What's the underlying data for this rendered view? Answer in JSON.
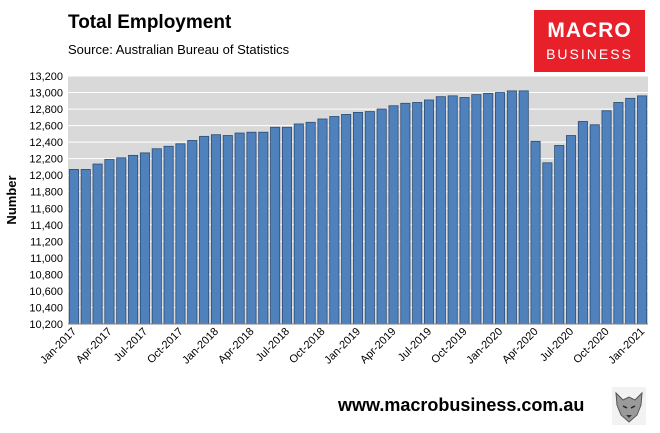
{
  "header": {
    "title": "Total Employment",
    "subtitle": "Source: Australian Bureau of Statistics"
  },
  "logo": {
    "line1": "MACRO",
    "line2": "BUSINESS"
  },
  "footer": {
    "url": "www.macrobusiness.com.au"
  },
  "colors": {
    "bar_fill": "#4f81bd",
    "bar_edge": "#2c4d75",
    "plot_bg": "#d9d9d9",
    "logo_red": "#e8202a"
  },
  "chart_data": {
    "type": "bar",
    "ylabel": "Number",
    "ylim": [
      10200,
      13200
    ],
    "yticks": [
      10200,
      10400,
      10600,
      10800,
      11000,
      11200,
      11400,
      11600,
      11800,
      12000,
      12200,
      12400,
      12600,
      12800,
      13000,
      13200
    ],
    "ytick_labels": [
      "10,200",
      "10,400",
      "10,600",
      "10,800",
      "11,000",
      "11,200",
      "11,400",
      "11,600",
      "11,800",
      "12,000",
      "12,200",
      "12,400",
      "12,600",
      "12,800",
      "13,000",
      "13,200"
    ],
    "categories": [
      "Jan-2017",
      "Feb-2017",
      "Mar-2017",
      "Apr-2017",
      "May-2017",
      "Jun-2017",
      "Jul-2017",
      "Aug-2017",
      "Sep-2017",
      "Oct-2017",
      "Nov-2017",
      "Dec-2017",
      "Jan-2018",
      "Feb-2018",
      "Mar-2018",
      "Apr-2018",
      "May-2018",
      "Jun-2018",
      "Jul-2018",
      "Aug-2018",
      "Sep-2018",
      "Oct-2018",
      "Nov-2018",
      "Dec-2018",
      "Jan-2019",
      "Feb-2019",
      "Mar-2019",
      "Apr-2019",
      "May-2019",
      "Jun-2019",
      "Jul-2019",
      "Aug-2019",
      "Sep-2019",
      "Oct-2019",
      "Nov-2019",
      "Dec-2019",
      "Jan-2020",
      "Feb-2020",
      "Mar-2020",
      "Apr-2020",
      "May-2020",
      "Jun-2020",
      "Jul-2020",
      "Aug-2020",
      "Sep-2020",
      "Oct-2020",
      "Nov-2020",
      "Dec-2020",
      "Jan-2021"
    ],
    "values": [
      12070,
      12070,
      12135,
      12190,
      12210,
      12240,
      12270,
      12320,
      12350,
      12380,
      12420,
      12470,
      12490,
      12480,
      12510,
      12520,
      12520,
      12580,
      12580,
      12620,
      12640,
      12680,
      12710,
      12735,
      12760,
      12770,
      12800,
      12840,
      12870,
      12880,
      12910,
      12950,
      12960,
      12940,
      12975,
      12990,
      13000,
      13020,
      13020,
      12410,
      12150,
      12360,
      12480,
      12650,
      12610,
      12780,
      12880,
      12930,
      12960
    ],
    "xtick_labels": [
      "Jan-2017",
      "Apr-2017",
      "Jul-2017",
      "Oct-2017",
      "Jan-2018",
      "Apr-2018",
      "Jul-2018",
      "Oct-2018",
      "Jan-2019",
      "Apr-2019",
      "Jul-2019",
      "Oct-2019",
      "Jan-2020",
      "Apr-2020",
      "Jul-2020",
      "Oct-2020",
      "Jan-2021"
    ],
    "grid": true
  }
}
